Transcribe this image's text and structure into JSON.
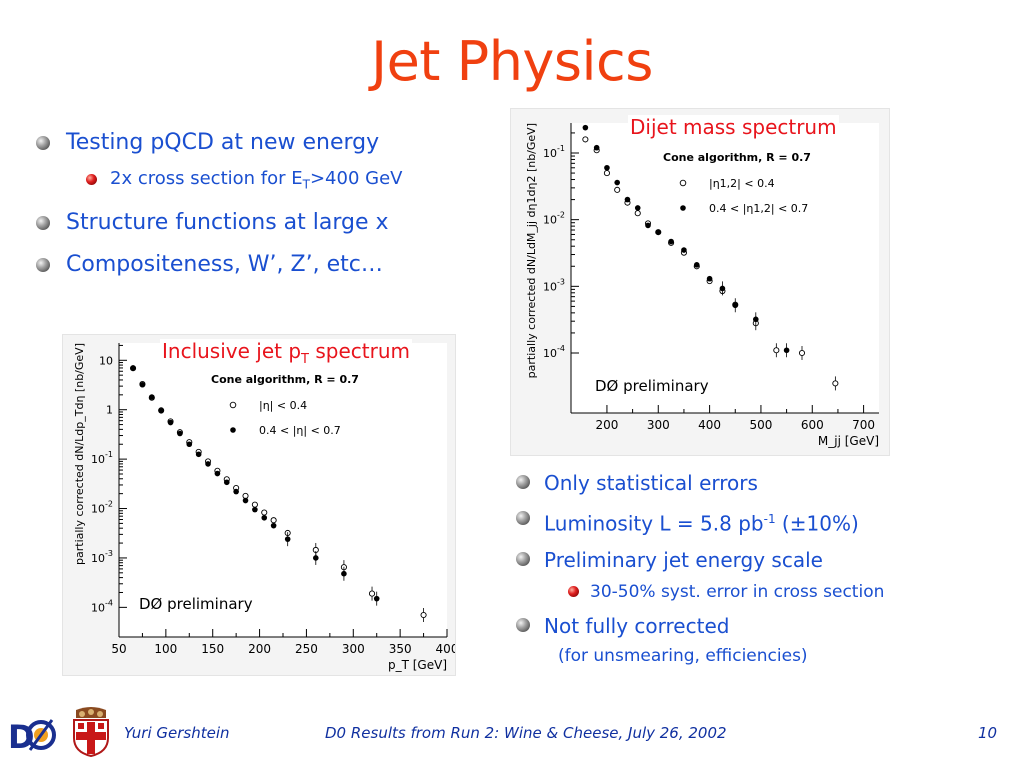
{
  "slide": {
    "title": "Jet Physics"
  },
  "left_bullets": [
    {
      "level": 1,
      "text": "Testing pQCD at new energy"
    },
    {
      "level": 2,
      "text_pre": "2x cross section for E",
      "sub": "T",
      "text_post": ">400 GeV"
    },
    {
      "level": 1,
      "text": "Structure functions at large x"
    },
    {
      "level": 1,
      "text": "Compositeness, W’, Z’, etc…"
    }
  ],
  "right_bullets": [
    {
      "level": 1,
      "text": "Only statistical errors"
    },
    {
      "level": 1,
      "text_pre": "Luminosity L = 5.8 pb",
      "sup": "-1",
      "text_post": " (±10%)"
    },
    {
      "level": 1,
      "text": "Preliminary jet energy scale"
    },
    {
      "level": 2,
      "text": "30-50% syst. error in cross section"
    },
    {
      "level": 1,
      "text": "Not fully corrected"
    },
    {
      "level": 3,
      "text": "(for unsmearing, efficiencies)"
    }
  ],
  "colors": {
    "title": "#f04010",
    "bullet_text": "#1a4fd0",
    "caption": "#e8141c",
    "footer": "#1030a0"
  },
  "chart_data": [
    {
      "type": "scatter",
      "caption_pre": "Inclusive jet p",
      "caption_sub": "T",
      "caption_post": " spectrum",
      "algorithm": "Cone algorithm, R = 0.7",
      "ylabel": "partially corrected   dN/Ldp_Tdη [nb/GeV]",
      "xlabel": "p_T [GeV]",
      "xlim": [
        50,
        400
      ],
      "ylog": true,
      "ylim_exp": [
        -4.6,
        1.35
      ],
      "xticks": [
        50,
        100,
        150,
        200,
        250,
        300,
        350,
        400
      ],
      "yticks": [
        {
          "exp": -4,
          "label": "10",
          "sup": "-4"
        },
        {
          "exp": -3,
          "label": "10",
          "sup": "-3"
        },
        {
          "exp": -2,
          "label": "10",
          "sup": "-2"
        },
        {
          "exp": -1,
          "label": "10",
          "sup": "-1"
        },
        {
          "exp": 0,
          "label": "1",
          "sup": ""
        },
        {
          "exp": 1,
          "label": "10",
          "sup": ""
        }
      ],
      "preliminary_label": "DØ preliminary",
      "series": [
        {
          "name": "|η| < 0.4",
          "marker": "open",
          "x": [
            65,
            75,
            85,
            95,
            105,
            115,
            125,
            135,
            145,
            155,
            165,
            175,
            185,
            195,
            205,
            215,
            230,
            260,
            290,
            320,
            375
          ],
          "y": [
            6.9,
            3.3,
            1.75,
            0.97,
            0.58,
            0.35,
            0.22,
            0.14,
            0.09,
            0.058,
            0.039,
            0.026,
            0.018,
            0.012,
            0.0083,
            0.0058,
            0.0032,
            0.00145,
            0.00065,
            0.00019,
            7e-05
          ]
        },
        {
          "name": "0.4 < |η| < 0.7",
          "marker": "filled",
          "x": [
            65,
            75,
            85,
            95,
            105,
            115,
            125,
            135,
            145,
            155,
            165,
            175,
            185,
            195,
            205,
            215,
            230,
            260,
            290,
            325
          ],
          "y": [
            7.0,
            3.2,
            1.8,
            0.95,
            0.55,
            0.33,
            0.2,
            0.125,
            0.08,
            0.051,
            0.034,
            0.022,
            0.0145,
            0.0095,
            0.0065,
            0.0045,
            0.0024,
            0.001,
            0.00048,
            0.00015
          ]
        }
      ]
    },
    {
      "type": "scatter",
      "caption": "Dijet mass spectrum",
      "algorithm": "Cone algorithm, R = 0.7",
      "ylabel": "partially corrected   dN/LdM_jj dη1dη2 [nb/GeV]",
      "xlabel": "M_jj [GeV]",
      "xlim": [
        130,
        730
      ],
      "ylog": true,
      "ylim_exp": [
        -4.9,
        -0.55
      ],
      "xticks": [
        200,
        300,
        400,
        500,
        600,
        700
      ],
      "yticks": [
        {
          "exp": -4,
          "label": "10",
          "sup": "-4"
        },
        {
          "exp": -3,
          "label": "10",
          "sup": "-3"
        },
        {
          "exp": -2,
          "label": "10",
          "sup": "-2"
        },
        {
          "exp": -1,
          "label": "10",
          "sup": "-1"
        }
      ],
      "preliminary_label": "DØ preliminary",
      "series": [
        {
          "name": "|η1,2| < 0.4",
          "marker": "open",
          "x": [
            158,
            180,
            200,
            220,
            240,
            260,
            280,
            300,
            325,
            350,
            375,
            400,
            425,
            450,
            490,
            530,
            580,
            645
          ],
          "y": [
            0.16,
            0.11,
            0.05,
            0.028,
            0.018,
            0.0125,
            0.0088,
            0.0065,
            0.0045,
            0.0032,
            0.002,
            0.0012,
            0.00085,
            0.00053,
            0.00028,
            0.00011,
            0.0001,
            3.5e-05
          ]
        },
        {
          "name": "0.4 < |η1,2| < 0.7",
          "marker": "filled",
          "x": [
            158,
            180,
            200,
            220,
            240,
            260,
            280,
            300,
            325,
            350,
            375,
            400,
            425,
            450,
            490,
            550
          ],
          "y": [
            0.24,
            0.12,
            0.06,
            0.036,
            0.02,
            0.015,
            0.0082,
            0.0065,
            0.0047,
            0.0035,
            0.0021,
            0.0013,
            0.00093,
            0.00052,
            0.00032,
            0.00011
          ]
        }
      ]
    }
  ],
  "footer": {
    "author": "Yuri Gershtein",
    "talk": "D0 Results from Run 2: Wine & Cheese, July 26, 2002",
    "page": "10"
  }
}
